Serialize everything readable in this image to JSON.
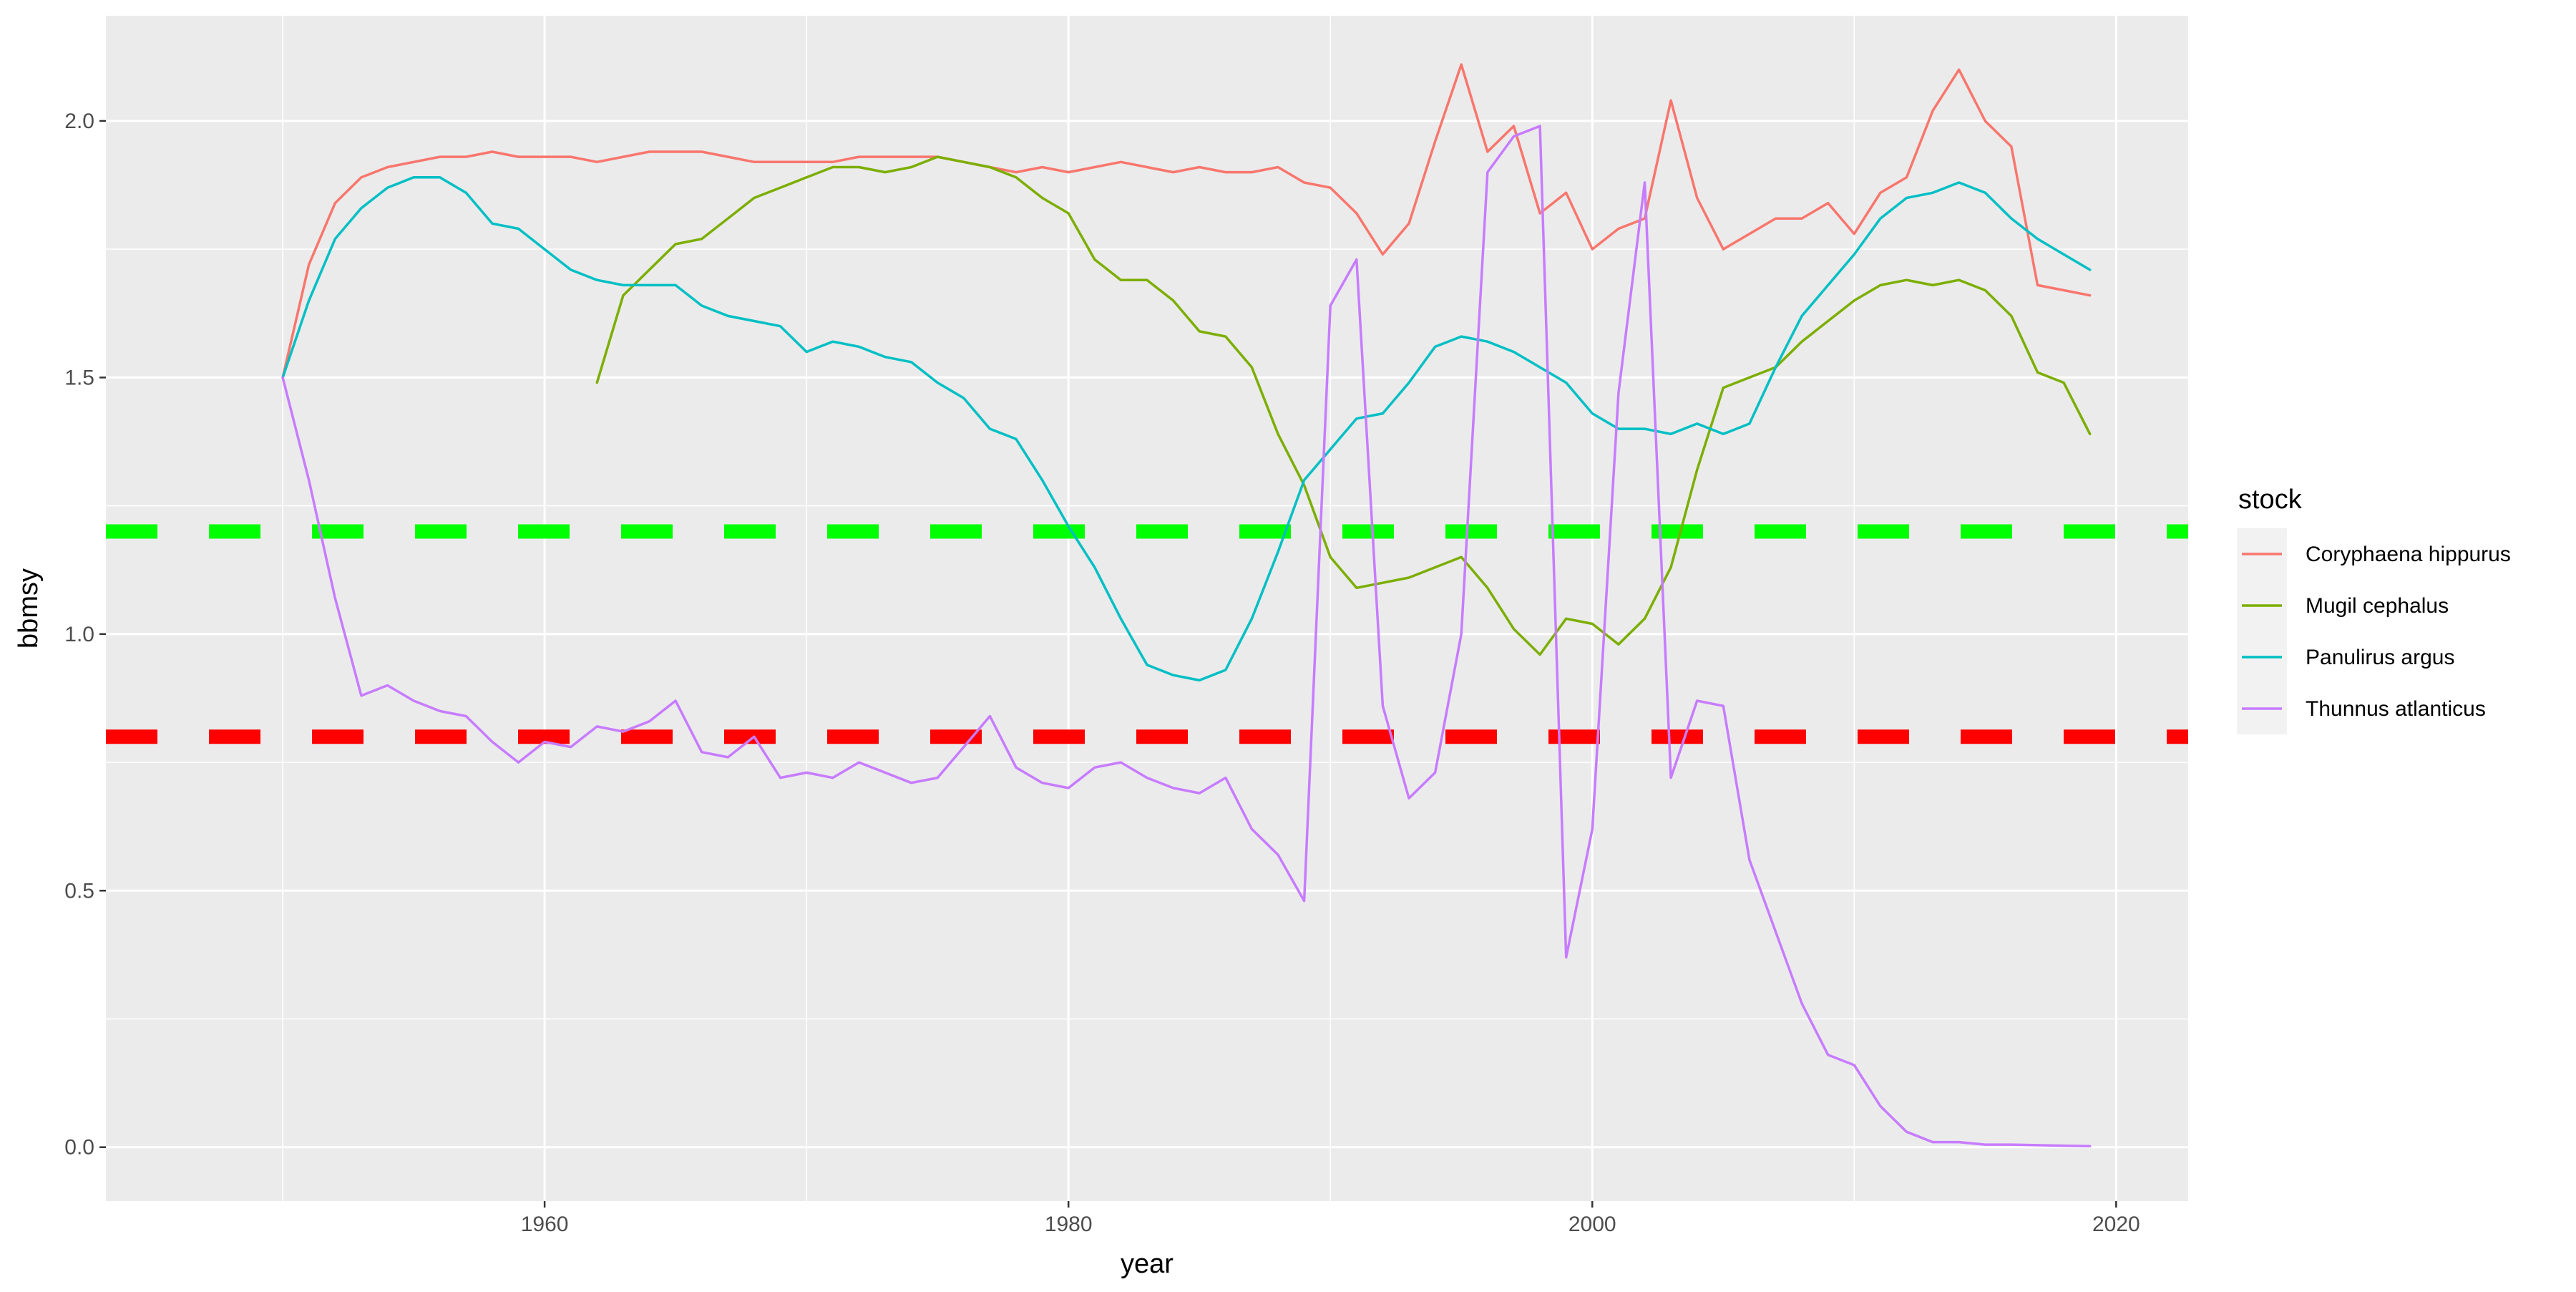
{
  "chart_data": {
    "type": "line",
    "xlabel": "year",
    "ylabel": "bbmsy",
    "xlim": [
      1943.25,
      2022.75
    ],
    "ylim": [
      -0.105,
      2.205
    ],
    "x_ticks": [
      1960,
      1980,
      2000,
      2020
    ],
    "y_ticks": [
      0.0,
      0.5,
      1.0,
      1.5,
      2.0
    ],
    "x_tick_labels": [
      "1960",
      "1980",
      "2000",
      "2020"
    ],
    "y_tick_labels": [
      "0.0",
      "0.5",
      "1.0",
      "1.5",
      "2.0"
    ],
    "grid": true,
    "legend": {
      "title": "stock",
      "position": "right"
    },
    "reference_lines": [
      {
        "y": 1.2,
        "color": "#00FF00",
        "style": "dashed"
      },
      {
        "y": 0.8,
        "color": "#FF0000",
        "style": "dashed"
      }
    ],
    "series": [
      {
        "name": "Coryphaena hippurus",
        "color": "#F8766D",
        "x": [
          1950,
          1951,
          1952,
          1953,
          1954,
          1955,
          1956,
          1957,
          1958,
          1959,
          1960,
          1961,
          1962,
          1963,
          1964,
          1965,
          1966,
          1967,
          1968,
          1969,
          1970,
          1971,
          1972,
          1973,
          1974,
          1975,
          1976,
          1977,
          1978,
          1979,
          1980,
          1981,
          1982,
          1983,
          1984,
          1985,
          1986,
          1987,
          1988,
          1989,
          1990,
          1991,
          1992,
          1993,
          1994,
          1995,
          1996,
          1997,
          1998,
          1999,
          2000,
          2001,
          2002,
          2003,
          2004,
          2005,
          2006,
          2007,
          2008,
          2009,
          2010,
          2011,
          2012,
          2013,
          2014,
          2015,
          2016,
          2017,
          2018,
          2019
        ],
        "values": [
          1.5,
          1.72,
          1.84,
          1.89,
          1.91,
          1.92,
          1.93,
          1.93,
          1.94,
          1.93,
          1.93,
          1.93,
          1.92,
          1.93,
          1.94,
          1.94,
          1.94,
          1.93,
          1.92,
          1.92,
          1.92,
          1.92,
          1.93,
          1.93,
          1.93,
          1.93,
          1.92,
          1.91,
          1.9,
          1.91,
          1.9,
          1.91,
          1.92,
          1.91,
          1.9,
          1.91,
          1.9,
          1.9,
          1.91,
          1.88,
          1.87,
          1.82,
          1.74,
          1.8,
          1.96,
          2.11,
          1.94,
          1.99,
          1.82,
          1.86,
          1.75,
          1.79,
          1.81,
          2.04,
          1.85,
          1.75,
          1.78,
          1.81,
          1.81,
          1.84,
          1.78,
          1.86,
          1.89,
          2.02,
          2.1,
          2.0,
          1.95,
          1.68,
          1.67,
          1.66
        ]
      },
      {
        "name": "Mugil cephalus",
        "color": "#7CAE00",
        "x": [
          1962,
          1963,
          1964,
          1965,
          1966,
          1967,
          1968,
          1969,
          1970,
          1971,
          1972,
          1973,
          1974,
          1975,
          1976,
          1977,
          1978,
          1979,
          1980,
          1981,
          1982,
          1983,
          1984,
          1985,
          1986,
          1987,
          1988,
          1989,
          1990,
          1991,
          1992,
          1993,
          1994,
          1995,
          1996,
          1997,
          1998,
          1999,
          2000,
          2001,
          2002,
          2003,
          2004,
          2005,
          2006,
          2007,
          2008,
          2009,
          2010,
          2011,
          2012,
          2013,
          2014,
          2015,
          2016,
          2017,
          2018,
          2019
        ],
        "values": [
          1.49,
          1.66,
          1.71,
          1.76,
          1.77,
          1.81,
          1.85,
          1.87,
          1.89,
          1.91,
          1.91,
          1.9,
          1.91,
          1.93,
          1.92,
          1.91,
          1.89,
          1.85,
          1.82,
          1.73,
          1.69,
          1.69,
          1.65,
          1.59,
          1.58,
          1.52,
          1.39,
          1.29,
          1.15,
          1.09,
          1.1,
          1.11,
          1.13,
          1.15,
          1.09,
          1.01,
          0.96,
          1.03,
          1.02,
          0.98,
          1.03,
          1.13,
          1.32,
          1.48,
          1.5,
          1.52,
          1.57,
          1.61,
          1.65,
          1.68,
          1.69,
          1.68,
          1.69,
          1.67,
          1.62,
          1.51,
          1.49,
          1.39
        ]
      },
      {
        "name": "Panulirus argus",
        "color": "#00BFC4",
        "x": [
          1950,
          1951,
          1952,
          1953,
          1954,
          1955,
          1956,
          1957,
          1958,
          1959,
          1960,
          1961,
          1962,
          1963,
          1964,
          1965,
          1966,
          1967,
          1968,
          1969,
          1970,
          1971,
          1972,
          1973,
          1974,
          1975,
          1976,
          1977,
          1978,
          1979,
          1980,
          1981,
          1982,
          1983,
          1984,
          1985,
          1986,
          1987,
          1988,
          1989,
          1990,
          1991,
          1992,
          1993,
          1994,
          1995,
          1996,
          1997,
          1998,
          1999,
          2000,
          2001,
          2002,
          2003,
          2004,
          2005,
          2006,
          2007,
          2008,
          2009,
          2010,
          2011,
          2012,
          2013,
          2014,
          2015,
          2016,
          2017,
          2018,
          2019
        ],
        "values": [
          1.5,
          1.65,
          1.77,
          1.83,
          1.87,
          1.89,
          1.89,
          1.86,
          1.8,
          1.79,
          1.75,
          1.71,
          1.69,
          1.68,
          1.68,
          1.68,
          1.64,
          1.62,
          1.61,
          1.6,
          1.55,
          1.57,
          1.56,
          1.54,
          1.53,
          1.49,
          1.46,
          1.4,
          1.38,
          1.3,
          1.21,
          1.13,
          1.03,
          0.94,
          0.92,
          0.91,
          0.93,
          1.03,
          1.16,
          1.3,
          1.36,
          1.42,
          1.43,
          1.49,
          1.56,
          1.58,
          1.57,
          1.55,
          1.52,
          1.49,
          1.43,
          1.4,
          1.4,
          1.39,
          1.41,
          1.39,
          1.41,
          1.52,
          1.62,
          1.68,
          1.74,
          1.81,
          1.85,
          1.86,
          1.88,
          1.86,
          1.81,
          1.77,
          1.74,
          1.71
        ]
      },
      {
        "name": "Thunnus atlanticus",
        "color": "#C77CFF",
        "x": [
          1950,
          1951,
          1952,
          1953,
          1954,
          1955,
          1956,
          1957,
          1958,
          1959,
          1960,
          1961,
          1962,
          1963,
          1964,
          1965,
          1966,
          1967,
          1968,
          1969,
          1970,
          1971,
          1972,
          1973,
          1974,
          1975,
          1976,
          1977,
          1978,
          1979,
          1980,
          1981,
          1982,
          1983,
          1984,
          1985,
          1986,
          1987,
          1988,
          1989,
          1990,
          1991,
          1992,
          1993,
          1994,
          1995,
          1996,
          1997,
          1998,
          1999,
          2000,
          2001,
          2002,
          2003,
          2004,
          2005,
          2006,
          2007,
          2008,
          2009,
          2010,
          2011,
          2012,
          2013,
          2014,
          2015,
          2016,
          2017,
          2018,
          2019
        ],
        "values": [
          1.5,
          1.3,
          1.07,
          0.88,
          0.9,
          0.87,
          0.85,
          0.84,
          0.79,
          0.75,
          0.79,
          0.78,
          0.82,
          0.81,
          0.83,
          0.87,
          0.77,
          0.76,
          0.8,
          0.72,
          0.73,
          0.72,
          0.75,
          0.73,
          0.71,
          0.72,
          0.78,
          0.84,
          0.74,
          0.71,
          0.7,
          0.74,
          0.75,
          0.72,
          0.7,
          0.69,
          0.72,
          0.62,
          0.57,
          0.48,
          1.64,
          1.73,
          0.86,
          0.68,
          0.73,
          1.0,
          1.9,
          1.97,
          1.99,
          0.37,
          0.62,
          1.47,
          1.88,
          0.72,
          0.87,
          0.86,
          0.56,
          0.42,
          0.28,
          0.18,
          0.16,
          0.08,
          0.03,
          0.01,
          0.01,
          0.005,
          0.005,
          0.004,
          0.003,
          0.002
        ]
      }
    ]
  }
}
